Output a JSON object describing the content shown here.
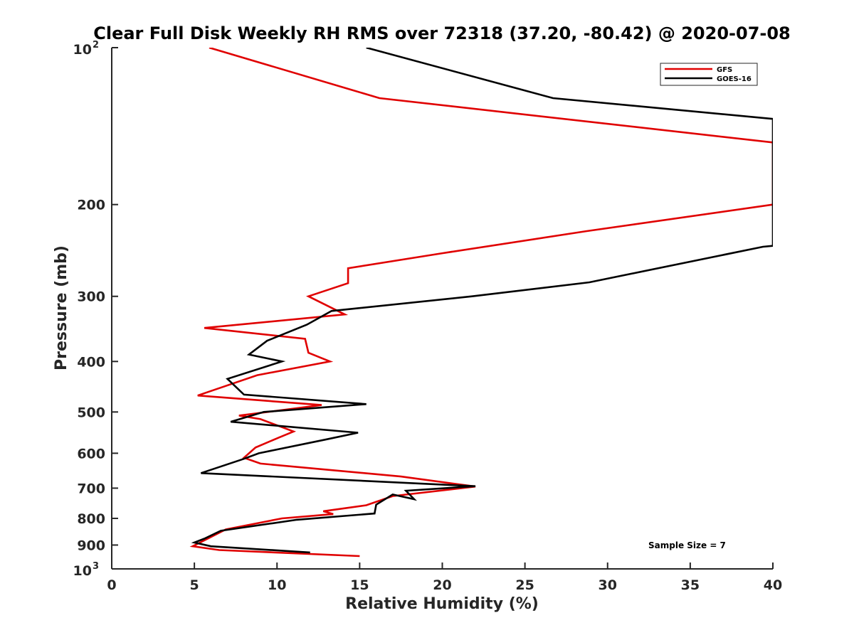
{
  "chart_data": {
    "type": "line",
    "title": "Clear Full Disk Weekly RH RMS over 72318 (37.20, -80.42) @ 2020-07-08",
    "xlabel": "Relative Humidity (%)",
    "ylabel": "Pressure (mb)",
    "xlim": [
      0,
      40
    ],
    "ylim": [
      100,
      1000
    ],
    "y_scale": "log",
    "y_reversed": true,
    "x_ticks": [
      "0",
      "5",
      "10",
      "15",
      "20",
      "25",
      "30",
      "35",
      "40"
    ],
    "y_ticks": [
      {
        "value": 100,
        "base": "10",
        "exp": "2"
      },
      {
        "value": 200,
        "label": "200"
      },
      {
        "value": 300,
        "label": "300"
      },
      {
        "value": 400,
        "label": "400"
      },
      {
        "value": 500,
        "label": "500"
      },
      {
        "value": 600,
        "label": "600"
      },
      {
        "value": 700,
        "label": "700"
      },
      {
        "value": 800,
        "label": "800"
      },
      {
        "value": 900,
        "label": "900"
      },
      {
        "value": 1000,
        "base": "10",
        "exp": "3"
      }
    ],
    "grid": false,
    "legend_position": "top-right",
    "annotation": "Sample Size = 7",
    "series": [
      {
        "name": "GFS",
        "color": "#e00000",
        "points": [
          [
            5.9,
            100
          ],
          [
            16.2,
            125
          ],
          [
            40.0,
            152
          ],
          [
            40.0,
            200
          ],
          [
            28.7,
            225
          ],
          [
            20.0,
            248
          ],
          [
            14.3,
            265
          ],
          [
            14.3,
            283
          ],
          [
            11.9,
            300
          ],
          [
            14.1,
            325
          ],
          [
            5.6,
            345
          ],
          [
            11.7,
            362
          ],
          [
            11.9,
            385
          ],
          [
            13.2,
            400
          ],
          [
            8.8,
            425
          ],
          [
            5.2,
            465
          ],
          [
            12.7,
            485
          ],
          [
            7.7,
            508
          ],
          [
            9.0,
            516
          ],
          [
            11.0,
            545
          ],
          [
            10.1,
            560
          ],
          [
            8.7,
            585
          ],
          [
            8.0,
            612
          ],
          [
            9.0,
            628
          ],
          [
            17.5,
            665
          ],
          [
            22.0,
            695
          ],
          [
            17.0,
            725
          ],
          [
            15.4,
            755
          ],
          [
            12.8,
            775
          ],
          [
            13.4,
            785
          ],
          [
            10.3,
            800
          ],
          [
            6.9,
            840
          ],
          [
            4.9,
            905
          ],
          [
            6.5,
            920
          ],
          [
            15.0,
            945
          ]
        ]
      },
      {
        "name": "GOES-16",
        "color": "#000000",
        "points": [
          [
            15.4,
            100
          ],
          [
            26.7,
            125
          ],
          [
            40.0,
            137
          ],
          [
            40.0,
            240
          ],
          [
            39.4,
            241
          ],
          [
            28.9,
            282
          ],
          [
            21.8,
            300
          ],
          [
            13.3,
            320
          ],
          [
            11.8,
            340
          ],
          [
            9.4,
            365
          ],
          [
            8.3,
            388
          ],
          [
            10.3,
            400
          ],
          [
            7.0,
            432
          ],
          [
            8.0,
            463
          ],
          [
            15.4,
            483
          ],
          [
            9.2,
            500
          ],
          [
            7.2,
            522
          ],
          [
            14.9,
            548
          ],
          [
            12.9,
            565
          ],
          [
            8.9,
            600
          ],
          [
            8.0,
            615
          ],
          [
            5.4,
            655
          ],
          [
            22.0,
            694
          ],
          [
            17.8,
            708
          ],
          [
            18.3,
            735
          ],
          [
            17.0,
            720
          ],
          [
            16.0,
            753
          ],
          [
            15.9,
            783
          ],
          [
            11.2,
            805
          ],
          [
            6.6,
            845
          ],
          [
            5.6,
            875
          ],
          [
            5.0,
            890
          ],
          [
            6.0,
            905
          ],
          [
            12.0,
            930
          ]
        ]
      }
    ]
  }
}
